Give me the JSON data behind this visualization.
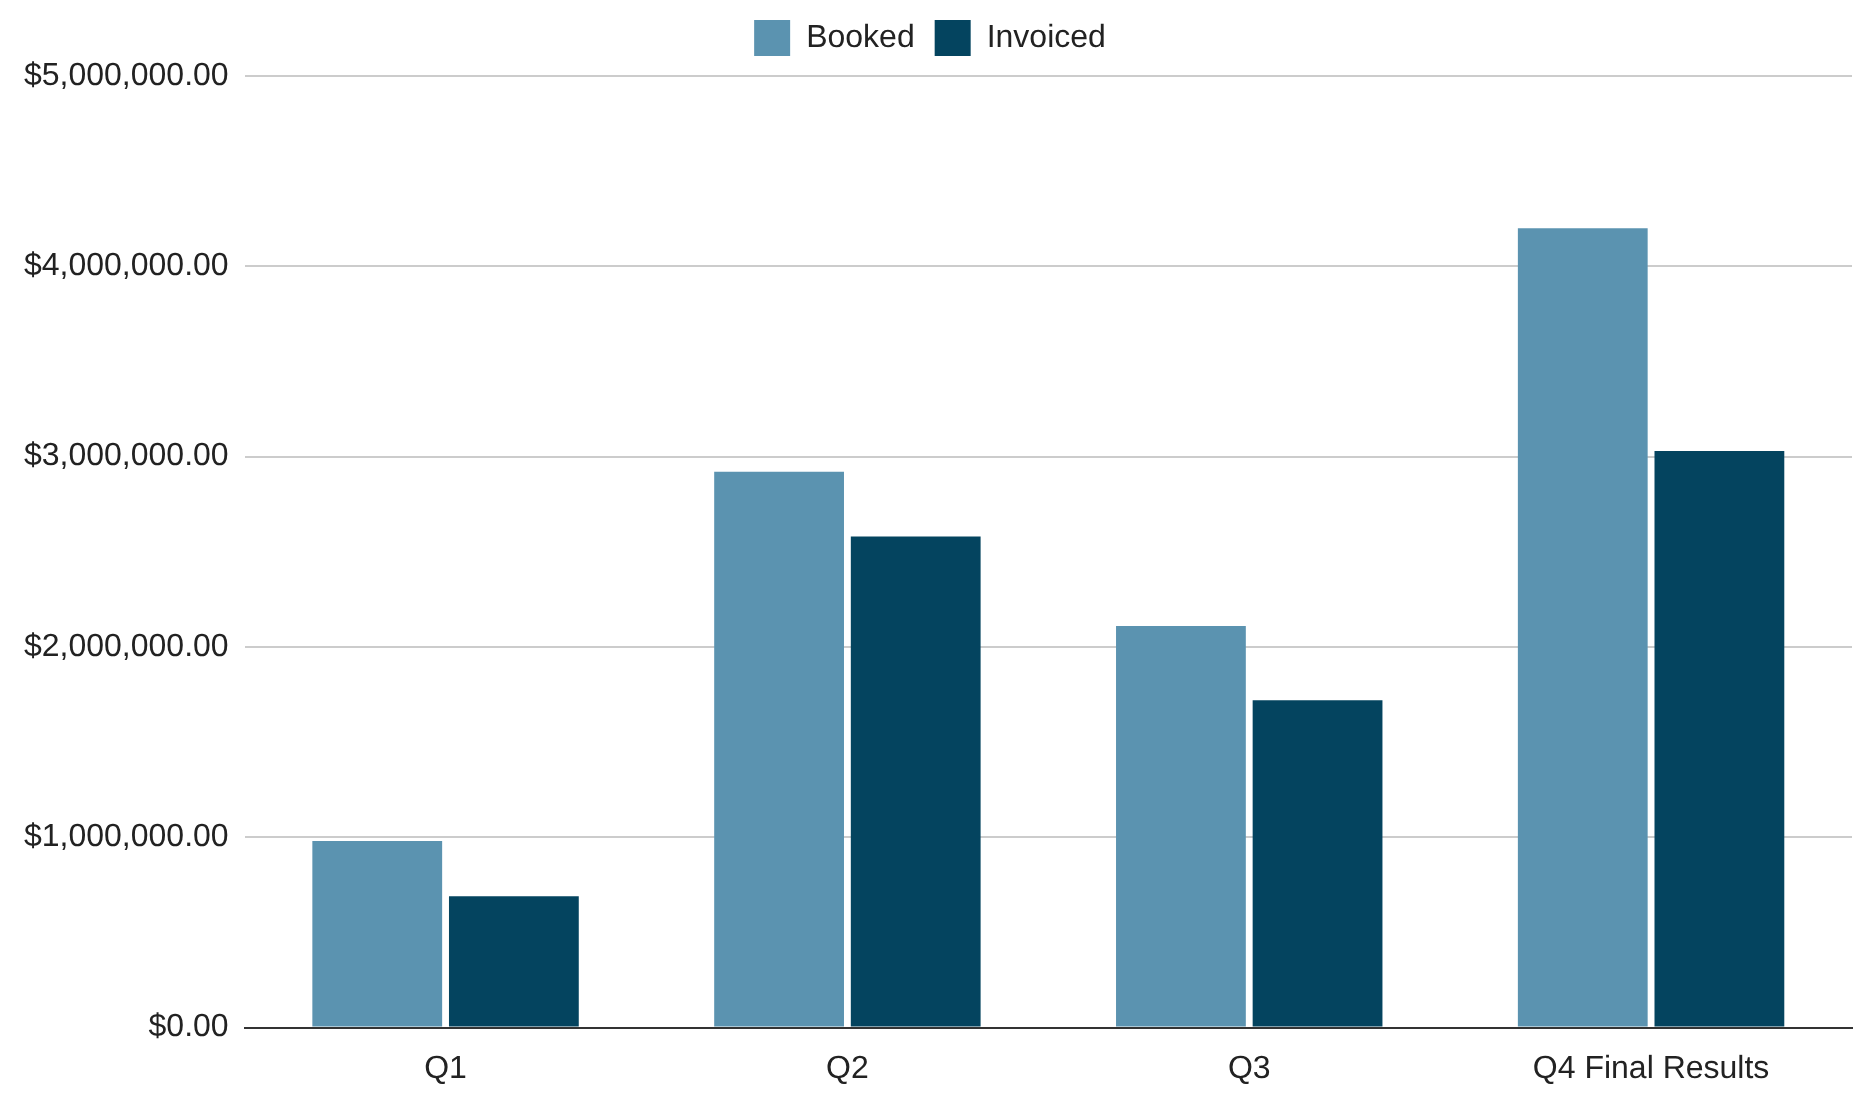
{
  "chart_data": {
    "type": "bar",
    "categories": [
      "Q1",
      "Q2",
      "Q3",
      "Q4 Final Results"
    ],
    "series": [
      {
        "name": "Booked",
        "color": "#5b93b0",
        "values": [
          980000,
          2920000,
          2110000,
          4200000
        ]
      },
      {
        "name": "Invoiced",
        "color": "#04445f",
        "values": [
          690000,
          2580000,
          1720000,
          3030000
        ]
      }
    ],
    "ylim": [
      0,
      5000000
    ],
    "yticks": [
      {
        "value": 0,
        "label": "$0.00"
      },
      {
        "value": 1000000,
        "label": "$1,000,000.00"
      },
      {
        "value": 2000000,
        "label": "$2,000,000.00"
      },
      {
        "value": 3000000,
        "label": "$3,000,000.00"
      },
      {
        "value": 4000000,
        "label": "$4,000,000.00"
      },
      {
        "value": 5000000,
        "label": "$5,000,000.00"
      }
    ],
    "grid": "y",
    "legend": "top"
  }
}
